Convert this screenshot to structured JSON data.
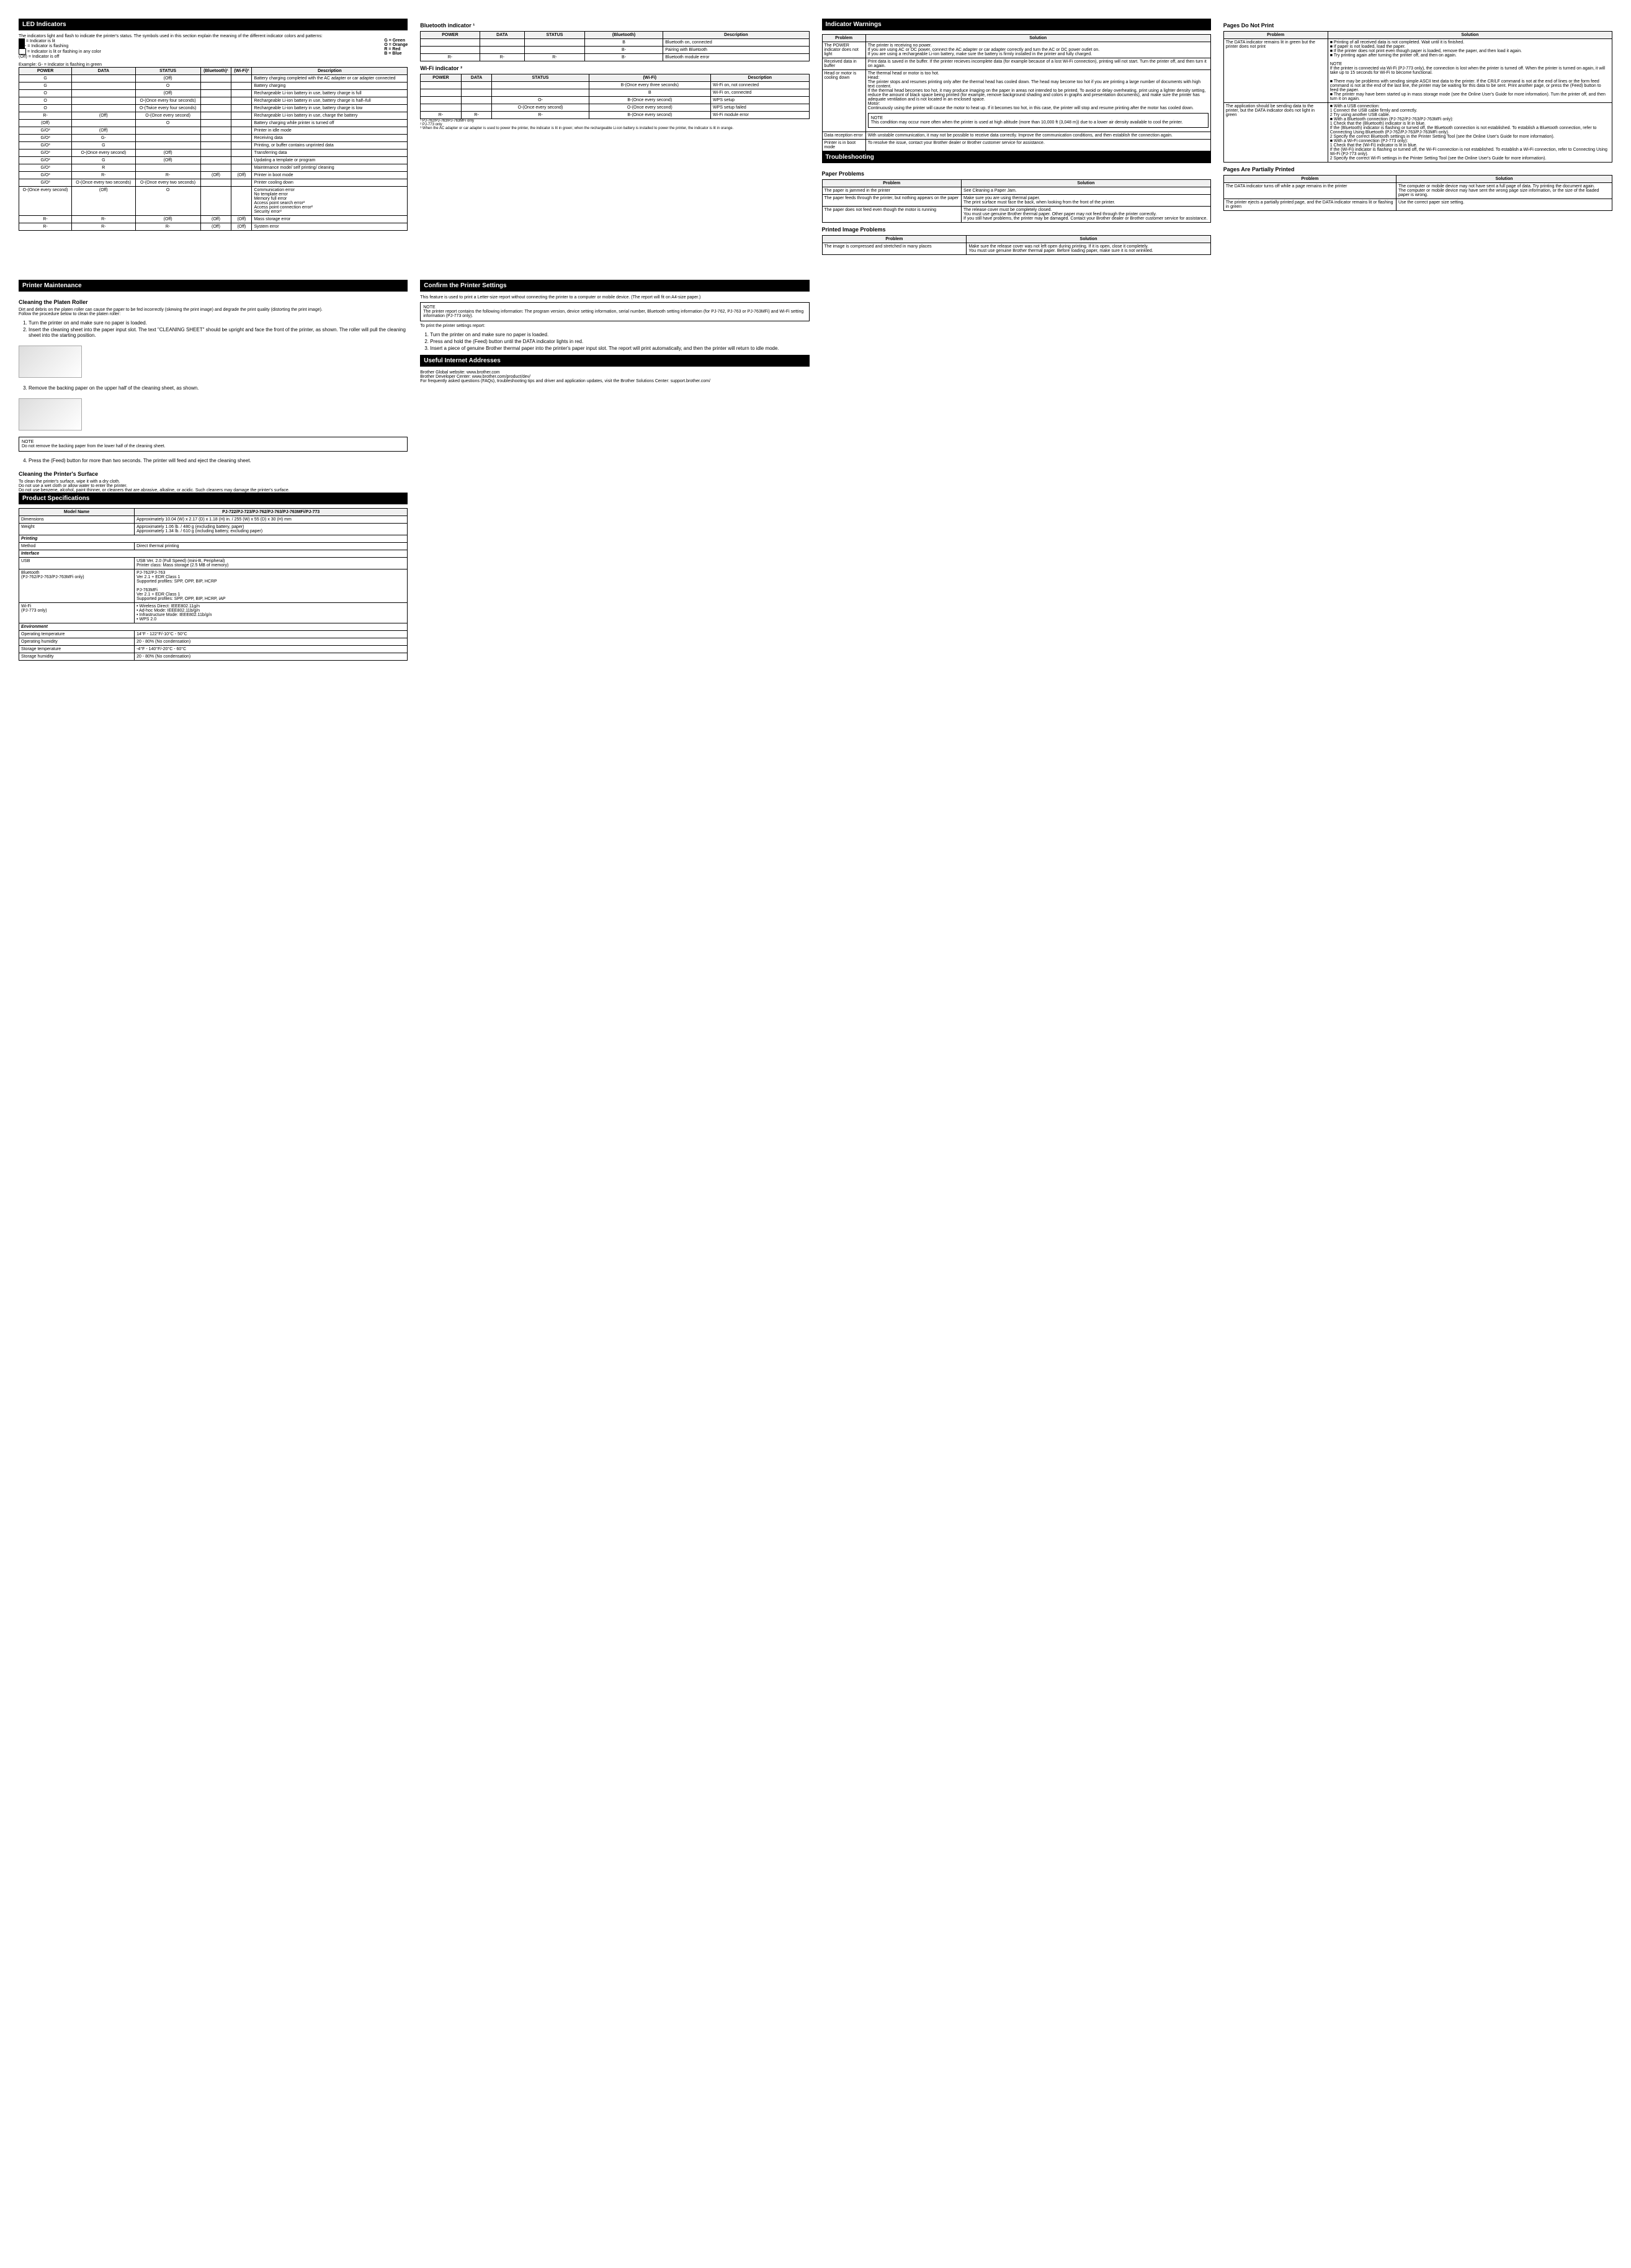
{
  "col1": {
    "header": "LED Indicators",
    "intro": "The indicators light and flash to indicate the printer's status. The symbols used in this section explain the meaning of the different indicator colors and patterns:",
    "legend_items": [
      "= Indicator is lit",
      "= Indicator is flashing",
      "= Indicator is lit or flashing in any color",
      "(Off) = Indicator is off"
    ],
    "color_key": "G = Green\nO = Orange\nR = Red\nB = Blue",
    "example": "Example: G- = Indicator is flashing in green",
    "table_headers": [
      "POWER",
      "DATA",
      "STATUS",
      "(Bluetooth)¹",
      "(Wi-Fi)²",
      "Description"
    ],
    "rows": [
      {
        "p": "G",
        "d": "",
        "s": "(Off)",
        "b": "",
        "w": "",
        "desc": "Battery charging completed with the AC adapter or car adapter connected"
      },
      {
        "p": "G",
        "d": "",
        "s": "O",
        "b": "",
        "w": "",
        "desc": "Battery charging"
      },
      {
        "p": "O",
        "d": "",
        "s": "(Off)",
        "b": "",
        "w": "",
        "desc": "Rechargeable Li-ion battery in use, battery charge is full"
      },
      {
        "p": "O",
        "d": "",
        "s": "O-(Once every four seconds)",
        "b": "",
        "w": "",
        "desc": "Rechargeable Li-ion battery in use, battery charge is half–full"
      },
      {
        "p": "O",
        "d": "",
        "s": "O-(Twice every four seconds)",
        "b": "",
        "w": "",
        "desc": "Rechargeable Li-ion battery in use, battery charge is low"
      },
      {
        "p": "R-",
        "d": "(Off)",
        "s": "O-(Once every second)",
        "b": "",
        "w": "",
        "desc": "Rechargeable Li-ion battery in use, charge the battery"
      },
      {
        "p": "(Off)",
        "d": "",
        "s": "O",
        "b": "",
        "w": "",
        "desc": "Battery charging while printer is turned off"
      },
      {
        "p": "G/O³",
        "d": "(Off)",
        "s": "",
        "b": "",
        "w": "",
        "desc": "Printer in idle mode"
      },
      {
        "p": "G/O³",
        "d": "G-",
        "s": "",
        "b": "",
        "w": "",
        "desc": "Receiving data"
      },
      {
        "p": "G/O³",
        "d": "G",
        "s": "",
        "b": "",
        "w": "",
        "desc": "Printing, or buffer contains unprinted data"
      },
      {
        "p": "G/O³",
        "d": "O-(Once every second)",
        "s": "(Off)",
        "b": "",
        "w": "",
        "desc": "Transferring data"
      },
      {
        "p": "G/O³",
        "d": "G",
        "s": "(Off)",
        "b": "",
        "w": "",
        "desc": "Updating a template or program"
      },
      {
        "p": "G/O³",
        "d": "R",
        "s": "",
        "b": "",
        "w": "",
        "desc": "Maintenance mode/ self printing/ cleaning"
      },
      {
        "p": "G/O³",
        "d": "R-",
        "s": "R-",
        "b": "(Off)",
        "w": "(Off)",
        "desc": "Printer in boot mode"
      },
      {
        "p": "G/O³",
        "d": "O-(Once every two seconds)",
        "s": "O-(Once every two seconds)",
        "b": "",
        "w": "",
        "desc": "Printer cooling down"
      },
      {
        "p": "O-(Once every second)",
        "d": "(Off)",
        "s": "O",
        "b": "",
        "w": "",
        "desc": "Communication error\nNo template error\nMemory full error\nAccess point search error²\nAccess point connection error²\nSecurity error²"
      },
      {
        "p": "R-",
        "d": "R-",
        "s": "(Off)",
        "b": "(Off)",
        "w": "(Off)",
        "desc": "Mass storage error"
      },
      {
        "p": "R-",
        "d": "R-",
        "s": "R-",
        "b": "(Off)",
        "w": "(Off)",
        "desc": "System error"
      }
    ]
  },
  "col2": {
    "bt_header": "Bluetooth indicator ¹",
    "bt_table_headers": [
      "POWER",
      "DATA",
      "STATUS",
      "(Bluetooth)",
      "Description"
    ],
    "bt_rows": [
      {
        "p": "",
        "d": "",
        "s": "",
        "b": "B",
        "desc": "Bluetooth on, connected"
      },
      {
        "p": "",
        "d": "",
        "s": "",
        "b": "B-",
        "desc": "Pairing with Bluetooth"
      },
      {
        "p": "R-",
        "d": "R-",
        "s": "R-",
        "b": "B-",
        "desc": "Bluetooth module error"
      }
    ],
    "wifi_header": "Wi-Fi indicator ²",
    "wifi_table_headers": [
      "POWER",
      "DATA",
      "STATUS",
      "(Wi-Fi)",
      "Description"
    ],
    "wifi_rows": [
      {
        "p": "",
        "d": "",
        "s": "",
        "w": "B-(Once every three seconds)",
        "desc": "Wi-Fi on, not connected"
      },
      {
        "p": "",
        "d": "",
        "s": "",
        "w": "B",
        "desc": "Wi-Fi on, connected"
      },
      {
        "p": "",
        "d": "",
        "s": "O-",
        "w": "B-(Once every second)",
        "desc": "WPS setup"
      },
      {
        "p": "",
        "d": "",
        "s": "O-(Once every second)",
        "w": "O-(Once every second)",
        "desc": "WPS setup failed"
      },
      {
        "p": "R-",
        "d": "R-",
        "s": "R-",
        "w": "B-(Once every second)",
        "desc": "Wi-Fi module error"
      }
    ],
    "footnotes": [
      "¹ PJ-762/PJ-763/PJ-763MFi only",
      "² PJ-773 only",
      "³ When the AC adapter or car adapter is used to power the printer, the indicator is lit in green; when the rechargeable Li-ion battery is installed to power the printer, the indicator is lit in orange."
    ]
  },
  "col3": {
    "header": "Indicator Warnings",
    "table_headers": [
      "Problem",
      "Solution"
    ],
    "rows": [
      {
        "p": "The POWER indicator does not light",
        "s": "The printer is receiving no power.\nIf you are using AC or DC power, connect the AC adapter or car adapter correctly and turn the AC or DC power outlet on.\nIf you are using a rechargeable Li-ion battery, make sure the battery is firmly installed in the printer and fully charged."
      },
      {
        "p": "Received data in buffer",
        "s": "Print data is saved in the buffer. If the printer recieves incomplete data (for example because of a lost Wi-Fi connection), printing will not start. Turn the printer off, and then turn it on again."
      },
      {
        "p": "Head or motor is cooling down",
        "s": "The thermal head or motor is too hot.\nHead:\nThe printer stops and resumes printing only after the thermal head has cooled down. The head may become too hot if you are printing a large number of documents with high text content.\nIf the thermal head becomes too hot, it may produce imaging on the paper in areas not intended to be printed. To avoid or delay overheating, print using a lighter density setting, reduce the amount of black space being printed (for example, remove background shading and colors in graphs and presentation documents), and make sure the printer has adequate ventilation and is not located in an enclosed space.\nMotor:\nContinuously using the printer will cause the motor to heat up. If it becomes too hot, in this case, the printer will stop and resume printing after the motor has cooled down."
      },
      {
        "p": "Data reception error",
        "s": "With unstable communication, it may not be possible to receive data correctly. Improve the communication conditions, and then establish the connection again."
      },
      {
        "p": "Printer is in boot mode",
        "s": "To resolve the issue, contact your Brother dealer or Brother customer service for assistance."
      }
    ],
    "note_inside": "NOTE\nThis condition may occur more often when the printer is used at high altitude (more than 10,000 ft (3,048 m)) due to a lower air density available to cool the printer.",
    "trouble_header": "Troubleshooting",
    "paper_header": "Paper Problems",
    "paper_rows": [
      {
        "p": "The paper is jammed in the printer",
        "s": "See Cleaning a Paper Jam."
      },
      {
        "p": "The paper feeds through the printer, but nothing appears on the paper",
        "s": "Make sure you are using thermal paper.\nThe print surface must face the back, when looking from the front of the printer."
      },
      {
        "p": "The paper does not feed even though the motor is running",
        "s": "The release cover must be completely closed.\nYou must use genuine Brother thermal paper. Other paper may not feed through the printer correctly.\nIf you still have problems, the printer may be damaged. Contact your Brother dealer or Brother customer service for assistance."
      }
    ],
    "image_header": "Printed Image Problems",
    "image_rows": [
      {
        "p": "The image is compressed and stretched in many places",
        "s": "Make sure the release cover was not left open during printing. If it is open, close it completely.\nYou must use genuine Brother thermal paper. Before loading paper, make sure it is not wrinkled."
      }
    ]
  },
  "col4": {
    "noprint_header": "Pages Do Not Print",
    "noprint_rows": [
      {
        "p": "The DATA indicator remains lit in green but the printer does not print",
        "s": "■ Printing of all received data is not completed. Wait until it is finished.\n■ If paper is not loaded, load the paper.\n■ If the printer does not print even though paper is loaded, remove the paper, and then load it again.\n■ Try printing again after turning the printer off, and then on again.\n\nNOTE\nIf the printer is connected via Wi-Fi (PJ-773 only), the connection is lost when the printer is turned off. When the printer is turned on again, it will take up to 15 seconds for Wi-Fi to become functional.\n\n■ There may be problems with sending simple ASCII text data to the printer. If the CR/LF command is not at the end of lines or the form feed command is not at the end of the last line, the printer may be waiting for this data to be sent. Print another page, or press the (Feed) button to feed the paper.\n■ The printer may have been started up in mass storage mode (see the Online User's Guide for more information). Turn the printer off, and then turn it on again."
      },
      {
        "p": "The application should be sending data to the printer, but the DATA indicator does not light in green",
        "s": "■ With a USB connection:\n1 Connect the USB cable firmly and correctly.\n2 Try using another USB cable.\n■ With a Bluetooth connection (PJ-762/PJ-763/PJ-763MFi only):\n1 Check that the (Bluetooth) indicator is lit in blue.\nIf the (Bluetooth) indicator is flashing or turned off, the Bluetooth connection is not established. To establish a Bluetooth connection, refer to Connecting Using Bluetooth (PJ-762/PJ-763/PJ-763MFi only).\n2 Specify the correct Bluetooth settings in the Printer Setting Tool (see the Online User's Guide for more information).\n■ With a Wi-Fi connection (PJ-773 only):\n1 Check that the (Wi-Fi) indicator is lit in blue.\nIf the (Wi-Fi) indicator is flashing or turned off, the Wi-Fi connection is not established. To establish a Wi-Fi connection, refer to Connecting Using Wi-Fi (PJ-773 only).\n2 Specify the correct Wi-Fi settings in the Printer Setting Tool (see the Online User's Guide for more information)."
      }
    ],
    "partial_header": "Pages Are Partially Printed",
    "partial_rows": [
      {
        "p": "The DATA indicator turns off while a page remains in the printer",
        "s": "The computer or mobile device may not have sent a full page of data. Try printing the document again.\nThe computer or mobile device may have sent the wrong page size information, or the size of the loaded paper is wrong."
      },
      {
        "p": "The printer ejects a partially printed page, and the DATA indicator remains lit or flashing in green",
        "s": "Use the correct paper size setting."
      }
    ]
  },
  "lower_col1": {
    "header": "Printer Maintenance",
    "cleaning_header": "Cleaning the Platen Roller",
    "cleaning_intro": "Dirt and debris on the platen roller can cause the paper to be fed incorrectly (skewing the print image) and degrade the print quality (distorting the print image).\nFollow the procedure below to clean the platen roller:",
    "steps": [
      "Turn the printer on and make sure no paper is loaded.",
      "Insert the cleaning sheet into the paper input slot. The text \"CLEANING SHEET\" should be upright and face the front of the printer, as shown. The roller will pull the cleaning sheet into the starting position.",
      "Remove the backing paper on the upper half of the cleaning sheet, as shown.",
      "Press the (Feed) button for more than two seconds. The printer will feed and eject the cleaning sheet."
    ],
    "note1": "NOTE\nDo not remove the backing paper from the lower half of the cleaning sheet.",
    "surface_header": "Cleaning the Printer's Surface",
    "surface_text": "To clean the printer's surface, wipe it with a dry cloth.\nDo not use a wet cloth or allow water to enter the printer.\nDo not use benzene, alcohol, paint thinner, or cleaners that are abrasive, alkaline, or acidic. Such cleaners may damage the printer's surface.",
    "spec_header": "Product Specifications",
    "spec_table": {
      "headers": [
        "Model Name",
        "PJ-722/PJ-723/PJ-762/PJ-763/PJ-763MFi/PJ-773"
      ],
      "rows": [
        {
          "k": "Dimensions",
          "v": "Approximately 10.04 (W) x 2.17 (D) x 1.18 (H) in. / 255 (W) x 55 (D) x 30 (H) mm"
        },
        {
          "k": "Weight",
          "v": "Approximately 1.06 lb. / 480 g (excluding battery, paper)\nApproximately 1.34 lb. / 610 g (including battery, excluding paper)"
        }
      ],
      "sections": [
        {
          "title": "Printing",
          "rows": [
            {
              "k": "Method",
              "v": "Direct thermal printing"
            }
          ]
        },
        {
          "title": "Interface",
          "rows": [
            {
              "k": "USB",
              "v": "USB Ver. 2.0 (Full Speed) (mini-B, Peripheral)\nPrinter class: Mass storage (2.5 MB of memory)"
            },
            {
              "k": "Bluetooth\n(PJ-762/PJ-763/PJ-763MFi only)",
              "v": "PJ-762/PJ-763\nVer 2.1 + EDR Class 1\nSupported profiles: SPP, OPP, BIP, HCRP\n\nPJ-763MFi\nVer 2.1 + EDR Class 1\nSupported profiles: SPP, OPP, BIP, HCRP, iAP"
            },
            {
              "k": "Wi-Fi\n(PJ-773 only)",
              "v": "• Wireless Direct: IEEE802.11g/n\n• Ad-hoc Mode: IEEE802.11b/g/n\n• Infrastructure Mode: IEEE802.11b/g/n\n• WPS 2.0"
            }
          ]
        },
        {
          "title": "Environment",
          "rows": [
            {
              "k": "Operating temperature",
              "v": "14°F - 122°F/-10°C - 50°C"
            },
            {
              "k": "Operating humidity",
              "v": "20 - 80% (No condensation)"
            },
            {
              "k": "Storage temperature",
              "v": "-4°F - 140°F/-20°C - 60°C"
            },
            {
              "k": "Storage humidity",
              "v": "20 - 80% (No condensation)"
            }
          ]
        }
      ]
    }
  },
  "lower_col2": {
    "header": "Confirm the Printer Settings",
    "intro": "This feature is used to print a Letter-size report without connecting the printer to a computer or mobile device. (The report will fit on A4-size paper.)",
    "note": "NOTE\nThe printer report contains the following information: The program version, device setting information, serial number, Bluetooth setting information (for PJ-762, PJ-763 or PJ-763MFi) and Wi-Fi setting information (PJ-773 only).",
    "steps_intro": "To print the printer settings report:",
    "steps": [
      "Turn the printer on and make sure no paper is loaded.",
      "Press and hold the (Feed) button until the DATA indicator lights in red.",
      "Insert a piece of genuine Brother thermal paper into the printer's paper input slot. The report will print automatically, and then the printer will return to idle mode."
    ],
    "internet_header": "Useful Internet Addresses",
    "internet_text": "Brother Global website: www.brother.com\nBrother Developer Center: www.brother.com/product/dev/\nFor frequently asked questions (FAQs), troubleshooting tips and driver and application updates, visit the Brother Solutions Center: support.brother.com/"
  }
}
